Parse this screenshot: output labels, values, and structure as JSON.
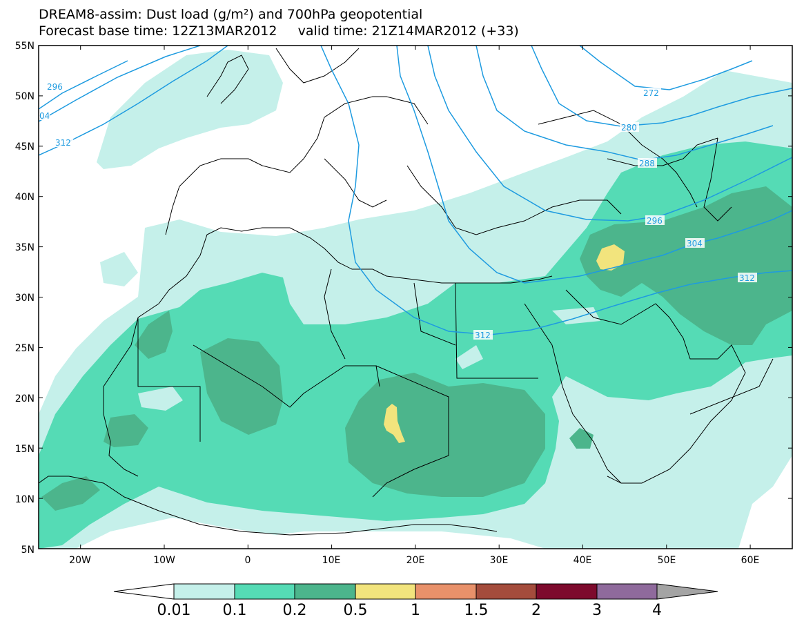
{
  "header": {
    "title_line1": "DREAM8-assim: Dust load (g/m²) and 700hPa geopotential",
    "base_time_label": "Forecast base time: 12Z13MAR2012",
    "valid_time_label": "valid time: 21Z14MAR2012 (+33)"
  },
  "map": {
    "lat_labels": [
      "55N",
      "50N",
      "45N",
      "40N",
      "35N",
      "30N",
      "25N",
      "20N",
      "15N",
      "10N",
      "5N"
    ],
    "lon_labels": [
      "20W",
      "10W",
      "0",
      "10E",
      "20E",
      "30E",
      "40E",
      "50E",
      "60E"
    ],
    "contour_labels": [
      "296",
      "04",
      "312",
      "272",
      "280",
      "288",
      "296",
      "304",
      "312",
      "312"
    ]
  },
  "legend": {
    "values": [
      "0.01",
      "0.1",
      "0.2",
      "0.5",
      "1",
      "1.5",
      "2",
      "3",
      "4"
    ],
    "colors": [
      "#c5f0ea",
      "#55dbb5",
      "#4cb58c",
      "#f2e47d",
      "#e8916a",
      "#a44c3c",
      "#7d0a2d",
      "#8f6a9c",
      "#a4a4a4"
    ]
  }
}
